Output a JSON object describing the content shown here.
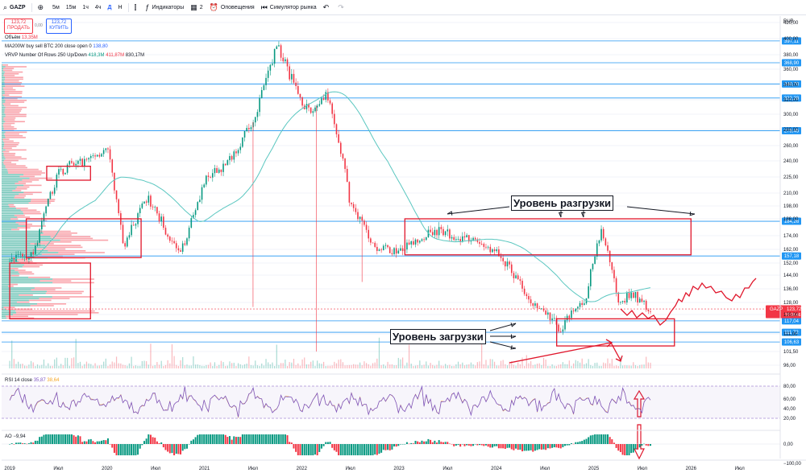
{
  "toolbar": {
    "symbol": "GAZP",
    "intervals": [
      "5м",
      "15м",
      "1ч",
      "4ч",
      "Д",
      "Н"
    ],
    "selected_interval": "Д",
    "indicators_label": "Индикаторы",
    "layouts_count": "2",
    "alerts_label": "Оповещения",
    "replay_label": "Симулятор рынка"
  },
  "trade": {
    "sell_price": "123,72",
    "sell_label": "ПРОДАТЬ",
    "spread": "0,00",
    "buy_price": "123,72",
    "buy_label": "КУПИТЬ"
  },
  "legend": {
    "volume_label": "Объём",
    "volume_value": "13,35M",
    "ma_label": "MA200W buy sell BTC 200 close open 0",
    "ma_value": "138,80",
    "vrvp_label": "VRVP Number Of Rows 250 Up/Down",
    "vrvp_up": "418,3M",
    "vrvp_down": "411,87M",
    "vrvp_total": "830,17M"
  },
  "annotations": {
    "distribution": "Уровень разгрузки",
    "accumulation": "Уровень загрузки"
  },
  "rsi": {
    "label": "RSI 14 close",
    "value1": "35,87",
    "value2": "38,64"
  },
  "ao": {
    "label": "AO",
    "value": "−9,94"
  },
  "currency": "RUB",
  "colors": {
    "up": "#089981",
    "down": "#f23645",
    "level": "#2196f3",
    "ma": "#5bc7c0",
    "annotation": "#e0162b",
    "rsi": "#7e57c2"
  },
  "chart_data": {
    "type": "line",
    "x_range": [
      "2018-12",
      "2026-12"
    ],
    "y_range": [
      96,
      420
    ],
    "y_ticks": [
      420.0,
      400.0,
      380.0,
      360.0,
      340.0,
      320.0,
      300.0,
      280.0,
      260.0,
      240.0,
      225.0,
      210.0,
      198.0,
      186.0,
      174.0,
      162.0,
      152.0,
      144.0,
      136.0,
      128.0,
      120.0,
      111.0,
      101.5,
      96.0
    ],
    "x_ticks": [
      "2019",
      "Июл",
      "2020",
      "Июл",
      "2021",
      "Июл",
      "2022",
      "Июл",
      "2023",
      "Июл",
      "2024",
      "Июл",
      "2025",
      "Июл",
      "2026",
      "Июл"
    ],
    "price_series": [
      {
        "date": "2019-01",
        "close": 153
      },
      {
        "date": "2019-04",
        "close": 160
      },
      {
        "date": "2019-07",
        "close": 230
      },
      {
        "date": "2019-10",
        "close": 240
      },
      {
        "date": "2020-01",
        "close": 255
      },
      {
        "date": "2020-03",
        "close": 165
      },
      {
        "date": "2020-06",
        "close": 205
      },
      {
        "date": "2020-10",
        "close": 157
      },
      {
        "date": "2021-01",
        "close": 220
      },
      {
        "date": "2021-04",
        "close": 240
      },
      {
        "date": "2021-07",
        "close": 290
      },
      {
        "date": "2021-10",
        "close": 395
      },
      {
        "date": "2021-12",
        "close": 340
      },
      {
        "date": "2022-02",
        "close": 300
      },
      {
        "date": "2022-04",
        "close": 330
      },
      {
        "date": "2022-07",
        "close": 200
      },
      {
        "date": "2022-10",
        "close": 165
      },
      {
        "date": "2023-01",
        "close": 160
      },
      {
        "date": "2023-05",
        "close": 178
      },
      {
        "date": "2023-10",
        "close": 170
      },
      {
        "date": "2024-01",
        "close": 160
      },
      {
        "date": "2024-06",
        "close": 125
      },
      {
        "date": "2024-09",
        "close": 113
      },
      {
        "date": "2024-12",
        "close": 130
      },
      {
        "date": "2025-02",
        "close": 178
      },
      {
        "date": "2025-04",
        "close": 130
      },
      {
        "date": "2025-06",
        "close": 132
      },
      {
        "date": "2025-08",
        "close": 123.72
      }
    ],
    "levels": [
      397.11,
      368.9,
      340.7,
      322.28,
      278.45,
      184.26,
      157.18,
      117.04,
      111.72,
      106.63
    ],
    "last_price": "123,72",
    "countdown": "10:08:46",
    "rsi_ticks": [
      "80,00",
      "60,00",
      "40,00",
      "20,00"
    ],
    "ao_ticks": [
      "0,00",
      "−100,00"
    ]
  }
}
